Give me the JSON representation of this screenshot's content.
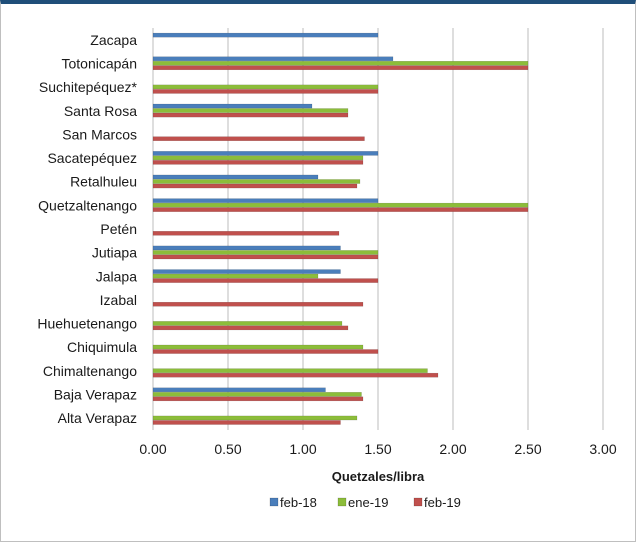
{
  "chart_data": {
    "type": "bar",
    "orientation": "horizontal",
    "title": "",
    "xlabel": "Quetzales/libra",
    "ylabel": "",
    "xlim": [
      0,
      3
    ],
    "xticks": [
      "0.00",
      "0.50",
      "1.00",
      "1.50",
      "2.00",
      "2.50",
      "3.00"
    ],
    "grid": true,
    "legend_position": "bottom",
    "categories": [
      "Zacapa",
      "Totonicapán",
      "Suchitepéquez*",
      "Santa Rosa",
      "San Marcos",
      "Sacatepéquez",
      "Retalhuleu",
      "Quetzaltenango",
      "Petén",
      "Jutiapa",
      "Jalapa",
      "Izabal",
      "Huehuetenango",
      "Chiquimula",
      "Chimaltenango",
      "Baja Verapaz",
      "Alta Verapaz"
    ],
    "series": [
      {
        "name": "feb-18",
        "color": "#4a7ebb",
        "values": [
          1.5,
          1.6,
          null,
          1.06,
          null,
          1.5,
          1.1,
          1.5,
          null,
          1.25,
          1.25,
          null,
          null,
          null,
          null,
          1.15,
          null
        ]
      },
      {
        "name": "ene-19",
        "color": "#8cbd3a",
        "values": [
          null,
          2.5,
          1.5,
          1.3,
          null,
          1.4,
          1.38,
          2.5,
          null,
          1.5,
          1.1,
          null,
          1.26,
          1.4,
          1.83,
          1.39,
          1.36
        ]
      },
      {
        "name": "feb-19",
        "color": "#c0504d",
        "values": [
          null,
          2.5,
          1.5,
          1.3,
          1.41,
          1.4,
          1.36,
          2.5,
          1.24,
          1.5,
          1.5,
          1.4,
          1.3,
          1.5,
          1.9,
          1.4,
          1.25
        ]
      }
    ]
  }
}
